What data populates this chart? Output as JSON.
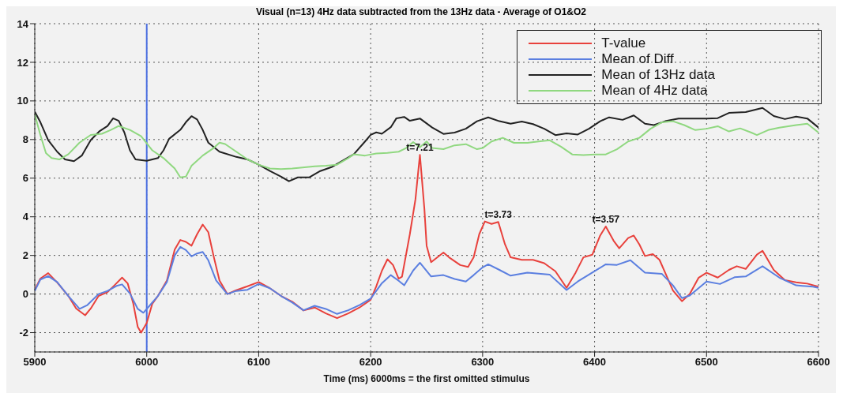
{
  "chart_data": {
    "type": "line",
    "title": "Visual (n=13) 4Hz data subtracted from the 13Hz data - Average of O1&O2",
    "xlabel": "Time (ms)  6000ms = the first omitted stimulus",
    "xlim": [
      5900,
      6600
    ],
    "xticks": [
      5900,
      6000,
      6100,
      6200,
      6300,
      6400,
      6500,
      6600
    ],
    "ylim": [
      -3,
      14
    ],
    "yticks": [
      -2,
      0,
      2,
      4,
      6,
      8,
      10,
      12,
      14
    ],
    "grid": true,
    "legend": "top right",
    "marker": "none",
    "line_style": "solid",
    "ref_lines": [
      {
        "axis": "x",
        "value": 6000,
        "color": "#4a6ee0",
        "line_style": "solid"
      }
    ],
    "annotations": [
      {
        "text": "t=7.21",
        "x": 6244,
        "y": 7.21
      },
      {
        "text": "t=3.73",
        "x": 6314,
        "y": 3.73
      },
      {
        "text": "t=3.57",
        "x": 6410,
        "y": 3.5
      }
    ],
    "series": [
      {
        "name": "T-value",
        "color": "#e8413c",
        "x": [
          5900,
          5905,
          5912,
          5920,
          5930,
          5937,
          5945,
          5950,
          5957,
          5965,
          5972,
          5978,
          5983,
          5988,
          5992,
          5995,
          6000,
          6005,
          6010,
          6018,
          6025,
          6030,
          6035,
          6040,
          6045,
          6050,
          6055,
          6060,
          6065,
          6072,
          6080,
          6090,
          6100,
          6110,
          6120,
          6130,
          6140,
          6150,
          6160,
          6170,
          6180,
          6190,
          6200,
          6205,
          6210,
          6215,
          6220,
          6225,
          6228,
          6235,
          6240,
          6244,
          6248,
          6250,
          6254,
          6265,
          6270,
          6280,
          6287,
          6292,
          6297,
          6302,
          6308,
          6314,
          6320,
          6325,
          6335,
          6345,
          6355,
          6365,
          6375,
          6383,
          6390,
          6398,
          6405,
          6410,
          6417,
          6422,
          6430,
          6435,
          6440,
          6445,
          6452,
          6458,
          6465,
          6470,
          6478,
          6485,
          6493,
          6500,
          6510,
          6520,
          6527,
          6535,
          6545,
          6550,
          6560,
          6570,
          6580,
          6590,
          6600
        ],
        "values": [
          0.22,
          0.8,
          1.08,
          0.6,
          -0.1,
          -0.75,
          -1.1,
          -0.75,
          -0.1,
          0.1,
          0.5,
          0.85,
          0.55,
          -0.5,
          -1.7,
          -2.0,
          -1.5,
          -0.5,
          -0.1,
          0.7,
          2.3,
          2.8,
          2.7,
          2.5,
          3.1,
          3.6,
          3.2,
          1.9,
          0.7,
          0,
          0.2,
          0.4,
          0.62,
          0.3,
          -0.1,
          -0.4,
          -0.85,
          -0.7,
          -1.0,
          -1.25,
          -1.0,
          -0.7,
          -0.3,
          0.4,
          1.2,
          1.8,
          1.5,
          0.8,
          0.9,
          3.1,
          4.9,
          7.21,
          4.4,
          2.5,
          1.65,
          2.15,
          1.9,
          1.5,
          1.4,
          1.9,
          3.1,
          3.76,
          3.63,
          3.73,
          2.57,
          1.9,
          1.77,
          1.77,
          1.6,
          1.18,
          0.32,
          1.1,
          1.9,
          2.04,
          3.03,
          3.5,
          2.76,
          2.37,
          2.9,
          3.03,
          2.57,
          1.97,
          2.07,
          1.77,
          0.85,
          0.18,
          -0.37,
          0,
          0.85,
          1.1,
          0.85,
          1.25,
          1.44,
          1.3,
          2.04,
          2.24,
          1.25,
          0.72,
          0.61,
          0.54,
          0.38
        ]
      },
      {
        "name": "Mean of Diff",
        "color": "#5b7fe0",
        "x": [
          5900,
          5905,
          5912,
          5920,
          5930,
          5940,
          5947,
          5957,
          5965,
          5973,
          5978,
          5985,
          5992,
          5997,
          6002,
          6010,
          6018,
          6025,
          6030,
          6035,
          6040,
          6045,
          6050,
          6055,
          6062,
          6072,
          6080,
          6090,
          6100,
          6110,
          6120,
          6130,
          6140,
          6150,
          6160,
          6170,
          6180,
          6190,
          6200,
          6210,
          6218,
          6225,
          6230,
          6238,
          6244,
          6254,
          6265,
          6275,
          6285,
          6292,
          6300,
          6305,
          6315,
          6325,
          6340,
          6360,
          6375,
          6385,
          6400,
          6410,
          6420,
          6432,
          6445,
          6460,
          6470,
          6478,
          6485,
          6500,
          6512,
          6525,
          6535,
          6550,
          6565,
          6580,
          6595,
          6600
        ],
        "values": [
          0.16,
          0.75,
          0.93,
          0.62,
          -0.1,
          -0.77,
          -0.57,
          0,
          0.16,
          0.42,
          0.5,
          0.03,
          -0.77,
          -0.97,
          -0.64,
          -0.1,
          0.62,
          2.0,
          2.44,
          2.28,
          1.95,
          2.1,
          2.18,
          1.75,
          0.7,
          0,
          0.16,
          0.22,
          0.52,
          0.3,
          -0.1,
          -0.44,
          -0.84,
          -0.61,
          -0.77,
          -1.03,
          -0.84,
          -0.57,
          -0.24,
          0.56,
          0.98,
          0.69,
          0.45,
          1.22,
          1.62,
          0.91,
          0.98,
          0.78,
          0.65,
          0.98,
          1.38,
          1.54,
          1.25,
          0.95,
          1.11,
          1.0,
          0.21,
          0.65,
          1.18,
          1.54,
          1.51,
          1.75,
          1.11,
          1.05,
          0.45,
          -0.21,
          -0.08,
          0.65,
          0.52,
          0.87,
          0.91,
          1.44,
          0.85,
          0.45,
          0.38,
          0.32
        ]
      },
      {
        "name": "Mean of 13Hz data",
        "color": "#222222",
        "x": [
          5900,
          5905,
          5912,
          5920,
          5927,
          5935,
          5942,
          5950,
          5958,
          5965,
          5970,
          5975,
          5980,
          5985,
          5990,
          6000,
          6010,
          6015,
          6020,
          6030,
          6035,
          6040,
          6045,
          6050,
          6055,
          6065,
          6080,
          6090,
          6100,
          6110,
          6120,
          6127,
          6135,
          6145,
          6155,
          6165,
          6175,
          6185,
          6195,
          6200,
          6205,
          6210,
          6218,
          6223,
          6230,
          6235,
          6244,
          6255,
          6265,
          6275,
          6285,
          6295,
          6305,
          6315,
          6325,
          6335,
          6345,
          6355,
          6365,
          6375,
          6385,
          6395,
          6405,
          6413,
          6425,
          6435,
          6445,
          6453,
          6463,
          6475,
          6490,
          6500,
          6510,
          6520,
          6535,
          6550,
          6560,
          6570,
          6580,
          6590,
          6600
        ],
        "values": [
          9.44,
          8.9,
          7.97,
          7.37,
          6.97,
          6.88,
          7.17,
          7.97,
          8.44,
          8.7,
          9.1,
          8.97,
          8.37,
          7.44,
          6.97,
          6.9,
          7.04,
          7.44,
          8.04,
          8.5,
          8.9,
          9.21,
          9.04,
          8.5,
          7.84,
          7.37,
          7.1,
          6.97,
          6.7,
          6.37,
          6.08,
          5.84,
          6.04,
          6.04,
          6.37,
          6.57,
          6.9,
          7.24,
          7.9,
          8.24,
          8.37,
          8.3,
          8.64,
          9.1,
          9.17,
          8.97,
          9.09,
          8.62,
          8.29,
          8.36,
          8.56,
          8.95,
          9.15,
          8.95,
          8.82,
          8.93,
          8.8,
          8.56,
          8.23,
          8.32,
          8.26,
          8.56,
          8.95,
          9.15,
          9.02,
          9.25,
          8.82,
          8.75,
          8.95,
          9.09,
          9.09,
          9.09,
          9.11,
          9.38,
          9.42,
          9.64,
          9.22,
          9.06,
          9.19,
          9.09,
          8.62
        ]
      },
      {
        "name": "Mean of 4Hz data",
        "color": "#90d880",
        "x": [
          5900,
          5905,
          5910,
          5915,
          5922,
          5930,
          5940,
          5950,
          5960,
          5968,
          5975,
          5985,
          5995,
          6005,
          6015,
          6025,
          6030,
          6035,
          6040,
          6050,
          6060,
          6065,
          6070,
          6080,
          6090,
          6100,
          6110,
          6120,
          6130,
          6150,
          6160,
          6170,
          6180,
          6185,
          6195,
          6205,
          6215,
          6225,
          6232,
          6238,
          6244,
          6250,
          6255,
          6265,
          6275,
          6285,
          6295,
          6300,
          6308,
          6318,
          6328,
          6340,
          6350,
          6360,
          6370,
          6380,
          6390,
          6400,
          6410,
          6420,
          6430,
          6440,
          6450,
          6460,
          6470,
          6480,
          6490,
          6500,
          6510,
          6520,
          6530,
          6540,
          6545,
          6555,
          6565,
          6580,
          6590,
          6600
        ],
        "values": [
          9.3,
          8.24,
          7.3,
          7.04,
          6.97,
          7.24,
          7.84,
          8.24,
          8.3,
          8.5,
          8.7,
          8.5,
          8.17,
          7.44,
          7.04,
          6.5,
          6.04,
          6.08,
          6.64,
          7.17,
          7.57,
          7.84,
          7.77,
          7.37,
          6.97,
          6.7,
          6.5,
          6.47,
          6.5,
          6.61,
          6.64,
          6.7,
          7.04,
          7.24,
          7.17,
          7.28,
          7.31,
          7.37,
          7.57,
          7.87,
          7.6,
          7.9,
          7.56,
          7.5,
          7.7,
          7.76,
          7.5,
          7.56,
          7.9,
          8.09,
          7.83,
          7.83,
          7.9,
          7.96,
          7.63,
          7.23,
          7.2,
          7.23,
          7.23,
          7.5,
          7.9,
          8.09,
          8.56,
          8.89,
          8.95,
          8.75,
          8.49,
          8.56,
          8.69,
          8.42,
          8.58,
          8.36,
          8.23,
          8.49,
          8.62,
          8.75,
          8.82,
          8.36
        ]
      }
    ]
  }
}
